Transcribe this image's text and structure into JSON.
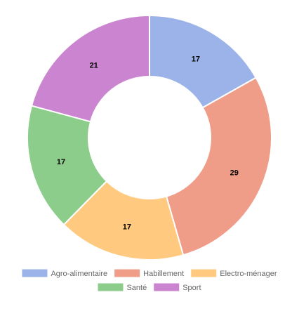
{
  "chart_data": {
    "type": "pie",
    "variant": "doughnut",
    "categories": [
      "Agro-alimentaire",
      "Habillement",
      "Electro-ménager",
      "Santé",
      "Sport"
    ],
    "values": [
      17,
      29,
      17,
      17,
      21
    ],
    "colors": [
      "#9bb3e8",
      "#ef9d89",
      "#ffca7f",
      "#8ccd8c",
      "#cb84cf"
    ],
    "legend": {
      "placement": "bottom"
    },
    "start_angle": "top",
    "direction": "clockwise"
  }
}
